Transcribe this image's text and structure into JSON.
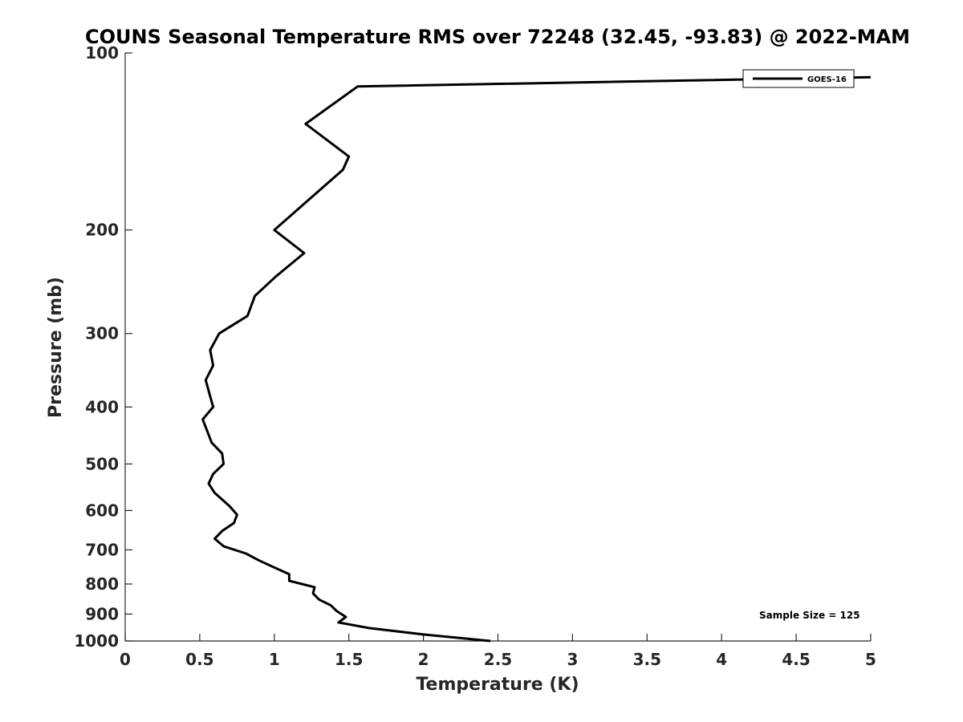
{
  "chart_data": {
    "type": "line",
    "title": "COUNS Seasonal Temperature RMS over 72248 (32.45, -93.83) @ 2022-MAM",
    "xlabel": "Temperature (K)",
    "ylabel": "Pressure (mb)",
    "xlim": [
      0,
      5
    ],
    "ylim": [
      1000,
      100
    ],
    "yscale": "log",
    "yaxis_inverted": true,
    "x_ticks": [
      "0",
      "0.5",
      "1",
      "1.5",
      "2",
      "2.5",
      "3",
      "3.5",
      "4",
      "4.5",
      "5"
    ],
    "x_tick_values": [
      0,
      0.5,
      1,
      1.5,
      2,
      2.5,
      3,
      3.5,
      4,
      4.5,
      5
    ],
    "y_ticks": [
      "100",
      "200",
      "300",
      "400",
      "500",
      "600",
      "700",
      "800",
      "900",
      "1000"
    ],
    "y_tick_values": [
      100,
      200,
      300,
      400,
      500,
      600,
      700,
      800,
      900,
      1000
    ],
    "grid": false,
    "legend_position": "top-right",
    "series": [
      {
        "name": "GOES-16",
        "color": "#000000",
        "points": [
          [
            5.0,
            110
          ],
          [
            1.56,
            114
          ],
          [
            1.21,
            132
          ],
          [
            1.5,
            150
          ],
          [
            1.46,
            158
          ],
          [
            1.0,
            200
          ],
          [
            1.2,
            219
          ],
          [
            1.01,
            240
          ],
          [
            0.87,
            259
          ],
          [
            0.82,
            280
          ],
          [
            0.63,
            300
          ],
          [
            0.57,
            320
          ],
          [
            0.59,
            340
          ],
          [
            0.54,
            360
          ],
          [
            0.59,
            400
          ],
          [
            0.52,
            420
          ],
          [
            0.58,
            460
          ],
          [
            0.65,
            480
          ],
          [
            0.66,
            500
          ],
          [
            0.59,
            520
          ],
          [
            0.56,
            540
          ],
          [
            0.6,
            560
          ],
          [
            0.7,
            590
          ],
          [
            0.75,
            610
          ],
          [
            0.73,
            630
          ],
          [
            0.65,
            650
          ],
          [
            0.6,
            670
          ],
          [
            0.66,
            690
          ],
          [
            0.81,
            710
          ],
          [
            0.9,
            730
          ],
          [
            1.0,
            750
          ],
          [
            1.1,
            770
          ],
          [
            1.1,
            790
          ],
          [
            1.27,
            810
          ],
          [
            1.26,
            830
          ],
          [
            1.3,
            850
          ],
          [
            1.38,
            870
          ],
          [
            1.42,
            890
          ],
          [
            1.48,
            910
          ],
          [
            1.43,
            930
          ],
          [
            1.63,
            950
          ],
          [
            2.0,
            975
          ],
          [
            2.45,
            1000
          ]
        ]
      }
    ],
    "annotations": [
      "Sample Size = 125"
    ]
  }
}
